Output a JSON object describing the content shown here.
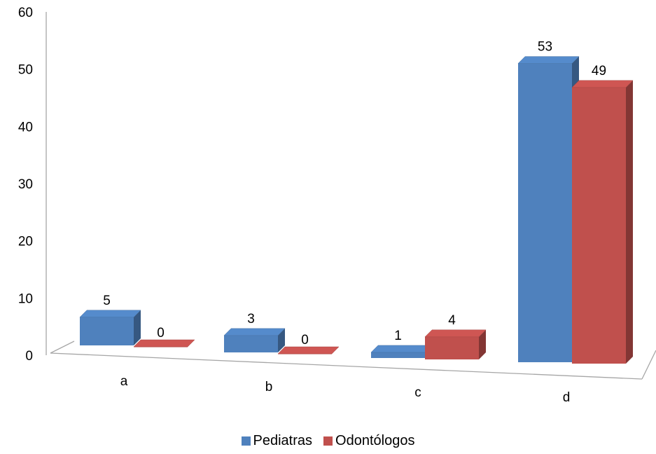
{
  "chart_data": {
    "type": "bar",
    "categories": [
      "a",
      "b",
      "c",
      "d"
    ],
    "series": [
      {
        "name": "Pediatras",
        "values": [
          5,
          3,
          1,
          53
        ],
        "color": "#4F81BD"
      },
      {
        "name": "Odontólogos",
        "values": [
          0,
          0,
          4,
          49
        ],
        "color": "#C0504D"
      }
    ],
    "y_ticks": [
      "0",
      "10",
      "20",
      "30",
      "40",
      "50",
      "60"
    ],
    "ylim": [
      0,
      60
    ],
    "data_labels": true,
    "legend_position": "bottom",
    "style": "3d-clustered-column",
    "grid": false
  }
}
